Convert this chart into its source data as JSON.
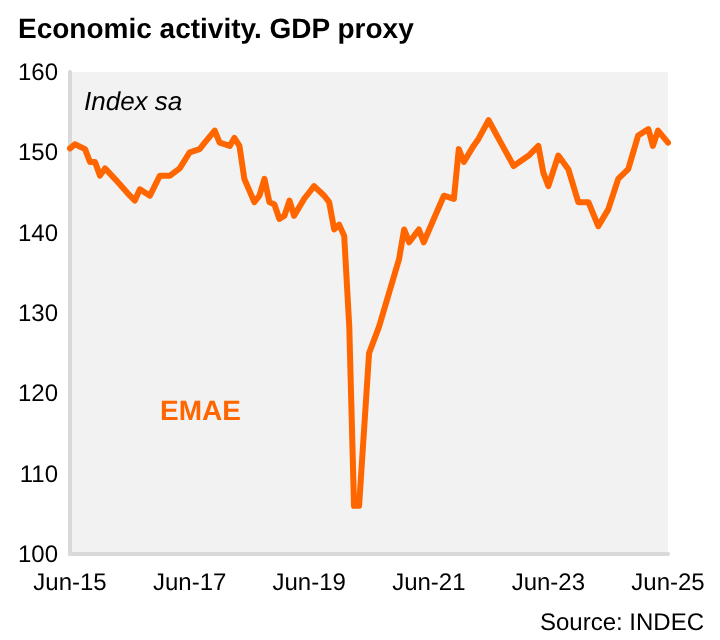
{
  "chart_data": {
    "type": "line",
    "title": "Economic activity. GDP proxy",
    "annotations": [
      "Index sa",
      "Source: INDEC"
    ],
    "series": [
      {
        "name": "EMAE",
        "color": "#ff6600",
        "x": [
          "2015-06",
          "2015-07",
          "2015-09",
          "2015-10",
          "2015-11",
          "2015-12",
          "2016-01",
          "2016-03",
          "2016-06",
          "2016-07",
          "2016-08",
          "2016-10",
          "2016-12",
          "2017-02",
          "2017-04",
          "2017-06",
          "2017-08",
          "2017-09",
          "2017-11",
          "2017-12",
          "2018-02",
          "2018-03",
          "2018-04",
          "2018-05",
          "2018-07",
          "2018-08",
          "2018-09",
          "2018-10",
          "2018-11",
          "2018-12",
          "2019-01",
          "2019-02",
          "2019-03",
          "2019-05",
          "2019-06",
          "2019-07",
          "2019-09",
          "2019-10",
          "2019-11",
          "2019-12",
          "2020-01",
          "2020-02",
          "2020-03",
          "2020-04",
          "2020-06",
          "2020-08",
          "2020-10",
          "2020-12",
          "2021-01",
          "2021-02",
          "2021-04",
          "2021-05",
          "2021-07",
          "2021-09",
          "2021-11",
          "2021-12",
          "2022-01",
          "2022-03",
          "2022-04",
          "2022-06",
          "2022-08",
          "2022-11",
          "2023-02",
          "2023-04",
          "2023-05",
          "2023-06",
          "2023-08",
          "2023-10",
          "2023-12",
          "2024-02",
          "2024-04",
          "2024-06",
          "2024-08",
          "2024-10",
          "2024-12",
          "2025-02",
          "2025-03",
          "2025-04",
          "2025-06"
        ],
        "values": [
          150.5,
          151,
          150.4,
          148.8,
          148.8,
          147.1,
          148,
          146.7,
          144.6,
          144,
          145.4,
          144.6,
          147.1,
          147.1,
          148,
          150,
          150.4,
          151.2,
          152.7,
          151.2,
          150.8,
          151.8,
          150.8,
          146.7,
          143.8,
          144.6,
          146.7,
          143.8,
          143.5,
          141.7,
          142.1,
          144,
          142.1,
          144.2,
          145,
          145.8,
          144.6,
          143.8,
          140.4,
          141,
          139.6,
          128.3,
          106,
          106,
          125,
          128.3,
          132.5,
          136.7,
          140.4,
          138.8,
          140.4,
          138.8,
          141.7,
          144.6,
          144.2,
          150.4,
          148.8,
          150.8,
          151.7,
          154,
          151.7,
          148.3,
          149.6,
          150.8,
          147.5,
          145.8,
          149.6,
          147.9,
          143.8,
          143.8,
          140.8,
          142.9,
          146.7,
          147.9,
          152.1,
          152.9,
          150.8,
          152.7,
          151.2
        ]
      }
    ],
    "xlim": [
      "2015-06",
      "2025-06"
    ],
    "xticks": [
      {
        "value": "2015-06",
        "label": "Jun-15"
      },
      {
        "value": "2017-06",
        "label": "Jun-17"
      },
      {
        "value": "2019-06",
        "label": "Jun-19"
      },
      {
        "value": "2021-06",
        "label": "Jun-21"
      },
      {
        "value": "2023-06",
        "label": "Jun-23"
      },
      {
        "value": "2025-06",
        "label": "Jun-25"
      }
    ],
    "ylim": [
      100,
      160
    ],
    "yticks": [
      100,
      110,
      120,
      130,
      140,
      150,
      160
    ],
    "grid": false,
    "legend": false,
    "marker": "none",
    "line_style": "solid"
  }
}
